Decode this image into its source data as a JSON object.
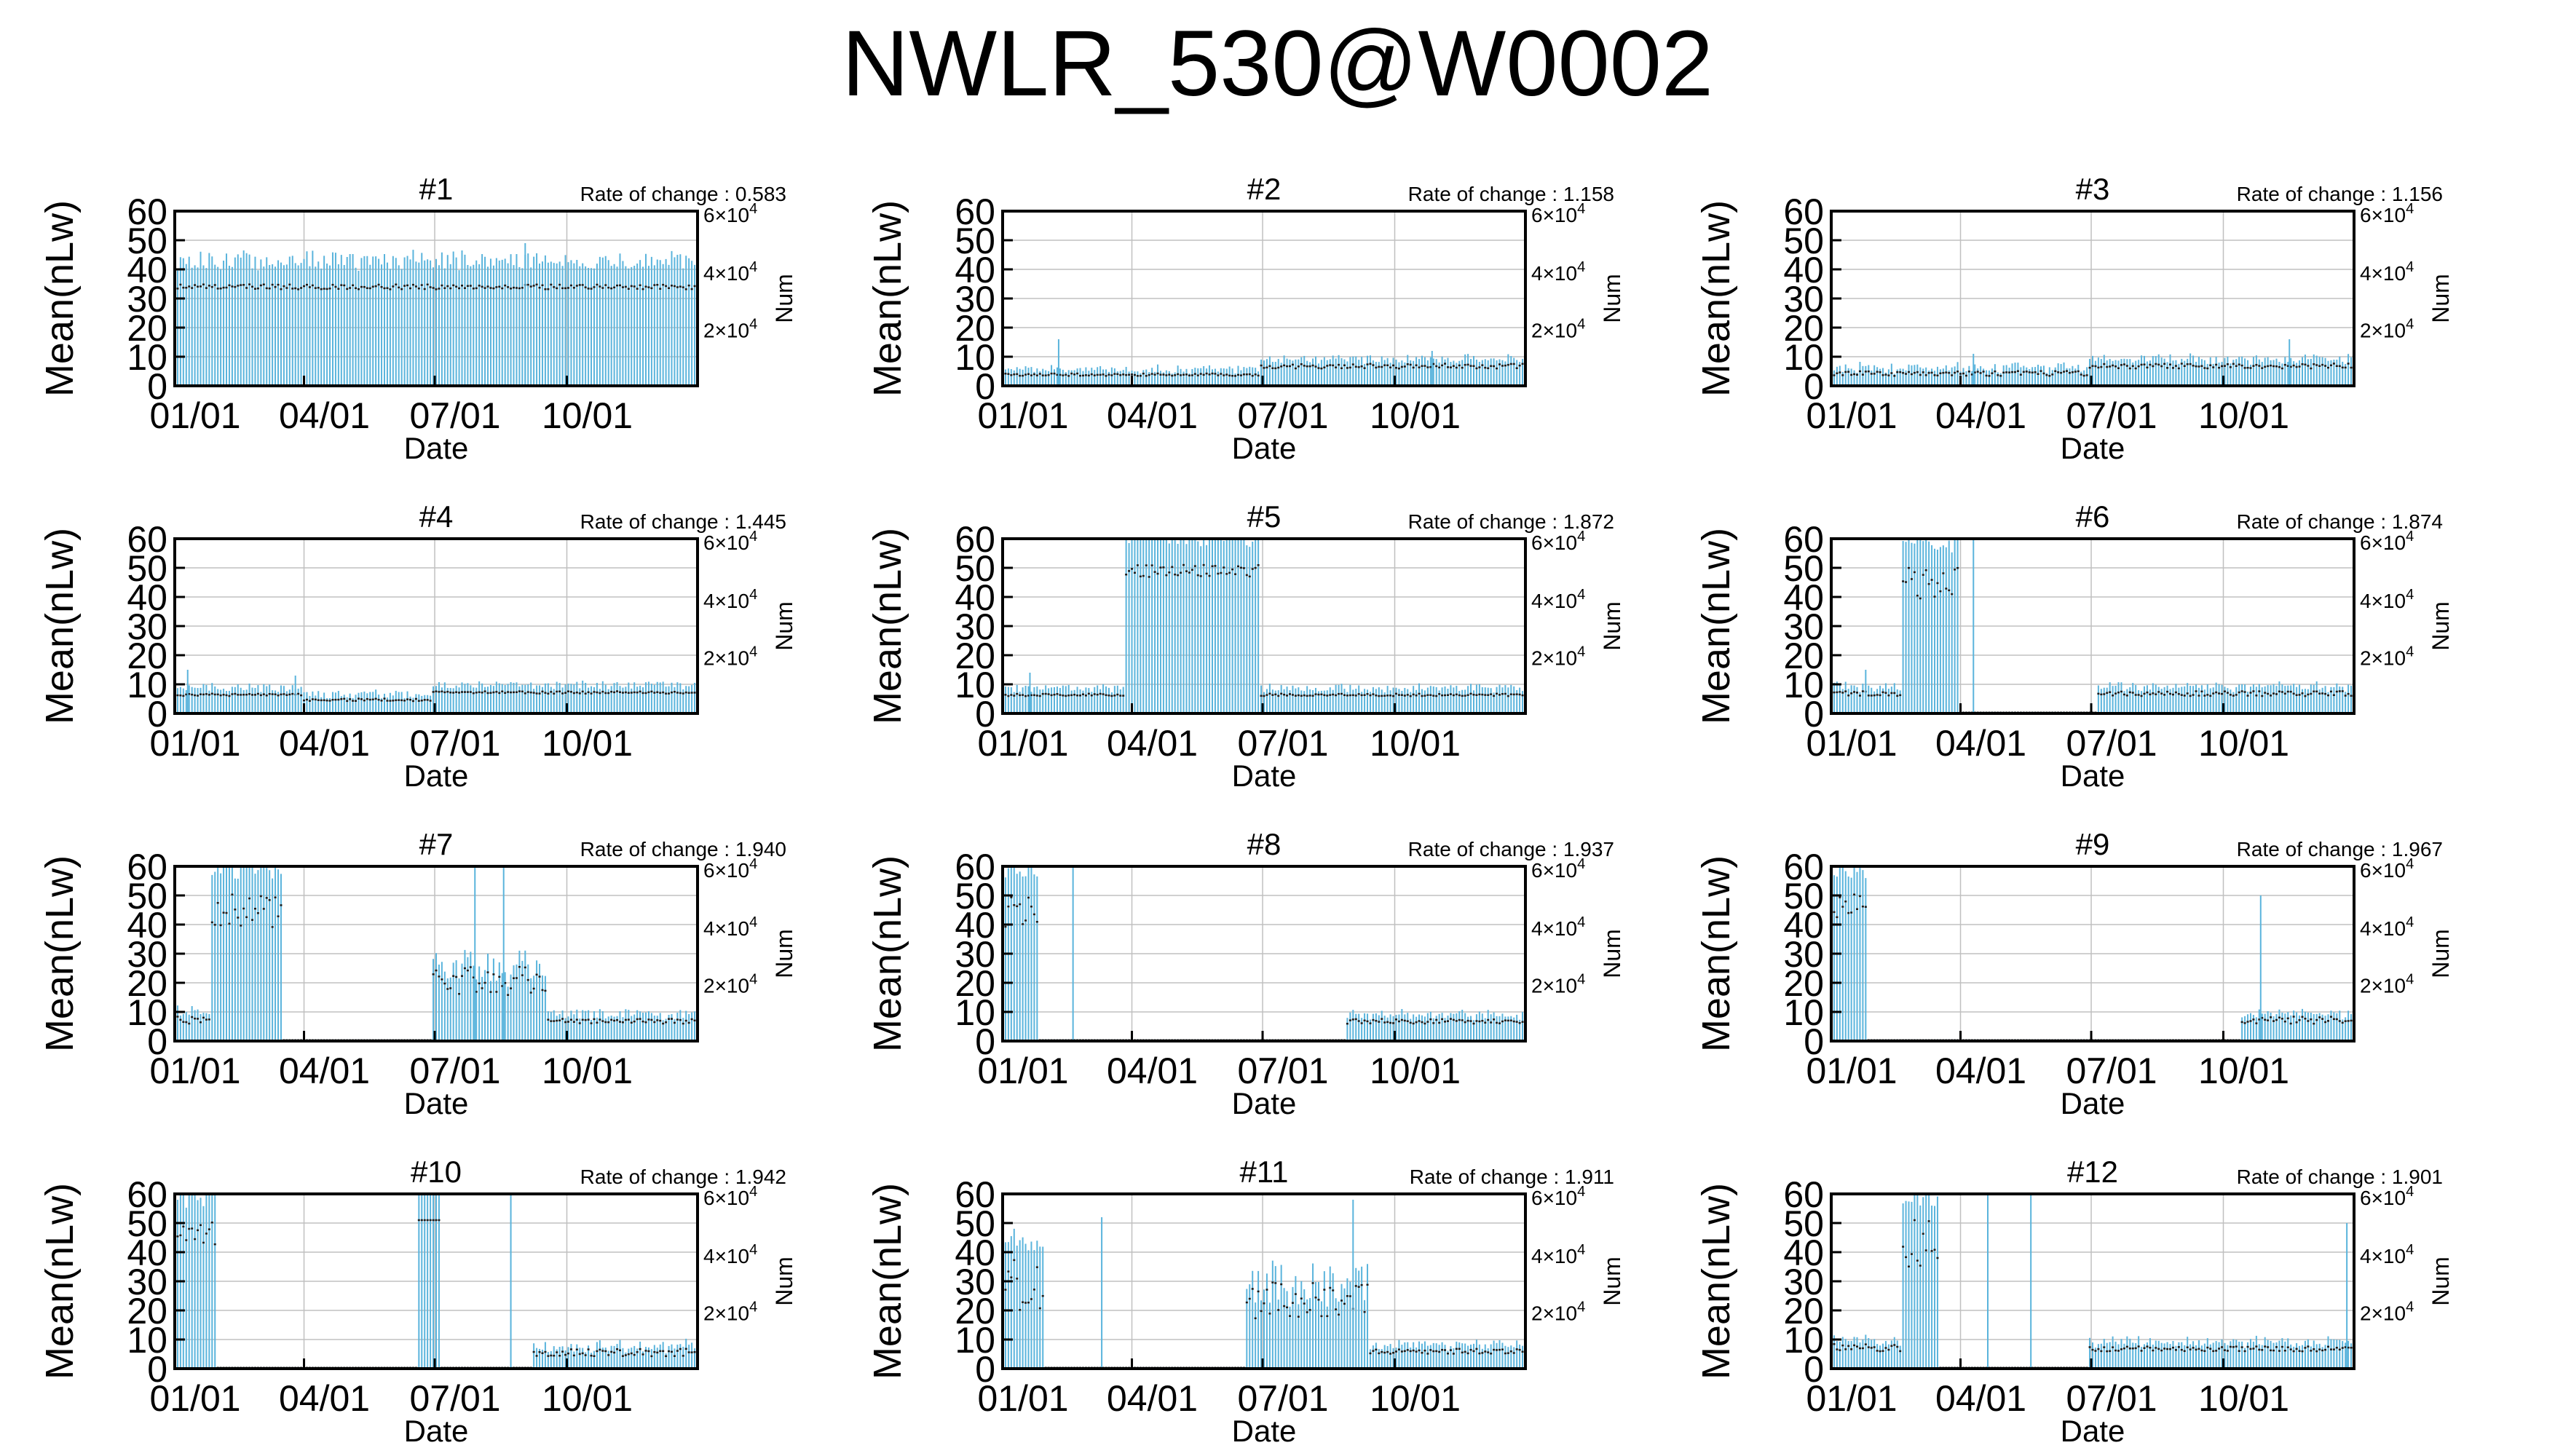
{
  "title": "NWLR_530@W0002",
  "axes": {
    "ylabel": "Mean(nLw)",
    "xlabel": "Date",
    "y2label": "Num",
    "yticks": [
      "0",
      "10",
      "20",
      "30",
      "40",
      "50",
      "60"
    ],
    "xticks": [
      "01/01",
      "04/01",
      "07/01",
      "10/01"
    ],
    "y2ticks": [
      {
        "mant": "2×10",
        "exp": "4"
      },
      {
        "mant": "4×10",
        "exp": "4"
      },
      {
        "mant": "6×10",
        "exp": "4"
      }
    ],
    "rate_prefix": "Rate of change : "
  },
  "colors": {
    "data": "#5ab4dc",
    "mean": "#1a1a1a",
    "grid": "#c0c0c0",
    "frame": "#000000"
  },
  "chart_data": [
    {
      "type": "line",
      "panel": "#1",
      "rate": "0.583",
      "ylim": [
        0,
        60
      ],
      "series": [
        {
          "name": "",
          "segments": [
            [
              1,
              365,
              39,
              41
            ]
          ]
        }
      ],
      "spikes": [
        [
          245,
          49
        ]
      ]
    },
    {
      "type": "line",
      "panel": "#2",
      "rate": "1.158",
      "ylim": [
        0,
        60
      ],
      "series": [
        {
          "name": "",
          "segments": [
            [
              1,
              180,
              4,
              5
            ],
            [
              181,
              365,
              7,
              9
            ]
          ]
        }
      ],
      "spikes": [
        [
          40,
          16
        ],
        [
          300,
          12
        ]
      ]
    },
    {
      "type": "line",
      "panel": "#3",
      "rate": "1.156",
      "ylim": [
        0,
        60
      ],
      "series": [
        {
          "name": "",
          "segments": [
            [
              1,
              180,
              4,
              6
            ],
            [
              181,
              365,
              7,
              9
            ]
          ]
        }
      ],
      "spikes": [
        [
          100,
          11
        ],
        [
          320,
          16
        ]
      ]
    },
    {
      "type": "line",
      "panel": "#4",
      "rate": "1.445",
      "ylim": [
        0,
        60
      ],
      "series": [
        {
          "name": "",
          "segments": [
            [
              1,
              90,
              7,
              8
            ],
            [
              91,
              180,
              5,
              6
            ],
            [
              181,
              365,
              8,
              9
            ]
          ]
        }
      ],
      "spikes": [
        [
          10,
          15
        ],
        [
          85,
          13
        ]
      ]
    },
    {
      "type": "line",
      "panel": "#5",
      "rate": "1.872",
      "ylim": [
        0,
        60
      ],
      "series": [
        {
          "name": "",
          "segments": [
            [
              1,
              85,
              7,
              8
            ],
            [
              86,
              180,
              55,
              60
            ],
            [
              181,
              365,
              7,
              8
            ]
          ]
        }
      ],
      "spikes": [
        [
          20,
          14
        ]
      ]
    },
    {
      "type": "line",
      "panel": "#6",
      "rate": "1.874",
      "ylim": [
        0,
        60
      ],
      "series": [
        {
          "name": "",
          "segments": [
            [
              1,
              50,
              7,
              9
            ],
            [
              51,
              90,
              45,
              60
            ],
            [
              91,
              185,
              0,
              0
            ],
            [
              186,
              365,
              7,
              9
            ]
          ]
        }
      ],
      "spikes": [
        [
          25,
          15
        ],
        [
          100,
          60
        ]
      ]
    },
    {
      "type": "line",
      "panel": "#7",
      "rate": "1.940",
      "ylim": [
        0,
        60
      ],
      "series": [
        {
          "name": "",
          "segments": [
            [
              1,
              25,
              7,
              10
            ],
            [
              26,
              75,
              45,
              60
            ],
            [
              76,
              180,
              0,
              0
            ],
            [
              181,
              260,
              18,
              30
            ],
            [
              261,
              365,
              7,
              9
            ]
          ]
        }
      ],
      "spikes": [
        [
          210,
          60
        ],
        [
          230,
          60
        ]
      ]
    },
    {
      "type": "line",
      "panel": "#8",
      "rate": "1.937",
      "ylim": [
        0,
        60
      ],
      "series": [
        {
          "name": "",
          "segments": [
            [
              1,
              25,
              45,
              60
            ],
            [
              26,
              240,
              0,
              0
            ],
            [
              241,
              365,
              7,
              9
            ]
          ]
        }
      ],
      "spikes": [
        [
          50,
          60
        ]
      ]
    },
    {
      "type": "line",
      "panel": "#9",
      "rate": "1.967",
      "ylim": [
        0,
        60
      ],
      "series": [
        {
          "name": "",
          "segments": [
            [
              1,
              25,
              50,
              60
            ],
            [
              26,
              285,
              0,
              0
            ],
            [
              286,
              365,
              7,
              10
            ]
          ]
        }
      ],
      "spikes": [
        [
          300,
          50
        ]
      ]
    },
    {
      "type": "line",
      "panel": "#10",
      "rate": "1.942",
      "ylim": [
        0,
        60
      ],
      "series": [
        {
          "name": "",
          "segments": [
            [
              1,
              30,
              50,
              60
            ],
            [
              31,
              170,
              0,
              0
            ],
            [
              171,
              185,
              60,
              60
            ],
            [
              186,
              250,
              0,
              0
            ],
            [
              251,
              365,
              5,
              8
            ]
          ]
        }
      ],
      "spikes": [
        [
          235,
          60
        ]
      ]
    },
    {
      "type": "line",
      "panel": "#11",
      "rate": "1.911",
      "ylim": [
        0,
        60
      ],
      "series": [
        {
          "name": "",
          "segments": [
            [
              1,
              30,
              20,
              45
            ],
            [
              31,
              170,
              0,
              0
            ],
            [
              171,
              255,
              20,
              35
            ],
            [
              256,
              365,
              6,
              8
            ]
          ]
        }
      ],
      "spikes": [
        [
          70,
          52
        ],
        [
          245,
          58
        ]
      ]
    },
    {
      "type": "line",
      "panel": "#12",
      "rate": "1.901",
      "ylim": [
        0,
        60
      ],
      "series": [
        {
          "name": "",
          "segments": [
            [
              1,
              50,
              7,
              10
            ],
            [
              51,
              75,
              40,
              60
            ],
            [
              76,
              180,
              0,
              0
            ],
            [
              181,
              365,
              7,
              9
            ]
          ]
        }
      ],
      "spikes": [
        [
          110,
          60
        ],
        [
          140,
          60
        ],
        [
          360,
          50
        ]
      ]
    }
  ]
}
